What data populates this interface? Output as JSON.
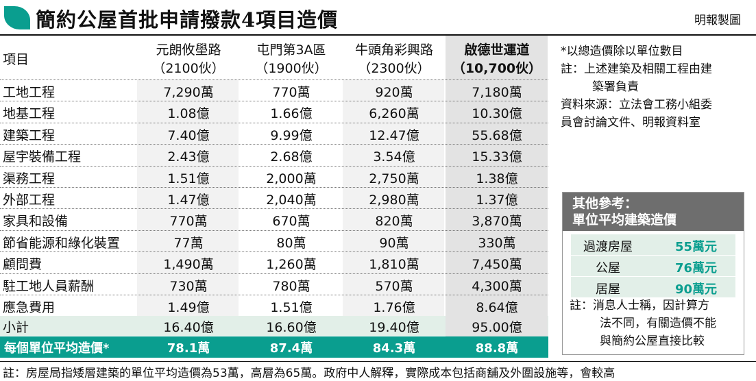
{
  "header": {
    "title": "簡約公屋首批申請撥款4項目造價",
    "credit": "明報製圖",
    "accent": "#0a9e8f"
  },
  "table": {
    "item_header": "項目",
    "columns": [
      {
        "name": "元朗攸壆路",
        "units": "（2100伙）"
      },
      {
        "name": "屯門第3A區",
        "units": "（1900伙）"
      },
      {
        "name": "牛頭角彩興路",
        "units": "（2300伙）"
      },
      {
        "name": "啟德世運道",
        "units": "（10,700伙）"
      }
    ],
    "rows": [
      {
        "name": "工地工程",
        "values": [
          "7,290萬",
          "770萬",
          "920萬",
          "7,180萬"
        ]
      },
      {
        "name": "地基工程",
        "values": [
          "1.08億",
          "1.66億",
          "6,260萬",
          "10.30億"
        ]
      },
      {
        "name": "建築工程",
        "values": [
          "7.40億",
          "9.99億",
          "12.47億",
          "55.68億"
        ]
      },
      {
        "name": "屋宇裝備工程",
        "values": [
          "2.43億",
          "2.68億",
          "3.54億",
          "15.33億"
        ]
      },
      {
        "name": "渠務工程",
        "values": [
          "1.51億",
          "2,000萬",
          "2,750萬",
          "1.38億"
        ]
      },
      {
        "name": "外部工程",
        "values": [
          "1.47億",
          "2,040萬",
          "2,980萬",
          "1.37億"
        ]
      },
      {
        "name": "家具和設備",
        "values": [
          "770萬",
          "670萬",
          "820萬",
          "3,870萬"
        ]
      },
      {
        "name": "節省能源和綠化裝置",
        "values": [
          "77萬",
          "80萬",
          "90萬",
          "330萬"
        ]
      },
      {
        "name": "顧問費",
        "values": [
          "1,490萬",
          "1,260萬",
          "1,810萬",
          "7,450萬"
        ]
      },
      {
        "name": "駐工地人員薪酬",
        "values": [
          "730萬",
          "780萬",
          "570萬",
          "4,300萬"
        ]
      },
      {
        "name": "應急費用",
        "values": [
          "1.49億",
          "1.51億",
          "1.76億",
          "8.64億"
        ]
      }
    ],
    "subtotal": {
      "name": "小計",
      "values": [
        "16.40億",
        "16.60億",
        "19.40億",
        "95.00億"
      ]
    },
    "average": {
      "name": "每個單位平均造價*",
      "values": [
        "78.1萬",
        "87.4萬",
        "84.3萬",
        "88.8萬"
      ]
    }
  },
  "notes": {
    "line1": "*以總造價除以單位數目",
    "line2a": "註：上述建築及相關工程由建",
    "line2b": "築署負責",
    "line3a": "資料來源：立法會工務小組委",
    "line3b": "員會討論文件、明報資料室"
  },
  "reference": {
    "title_line1": "其他參考：",
    "title_line2": "單位平均建築造價",
    "items": [
      {
        "label": "過渡房屋",
        "value": "55萬元"
      },
      {
        "label": "公屋",
        "value": "76萬元"
      },
      {
        "label": "居屋",
        "value": "90萬元"
      }
    ],
    "note_a": "註：消息人士稱，因計算方",
    "note_b": "法不同，有關造價不能",
    "note_c": "與簡約公屋直接比較"
  },
  "footer": {
    "text": "註：房屋局指矮層建築的單位平均造價為53萬，高層為65萬。政府中人解釋，實際成本包括商舖及外圍設施等，會較高"
  }
}
